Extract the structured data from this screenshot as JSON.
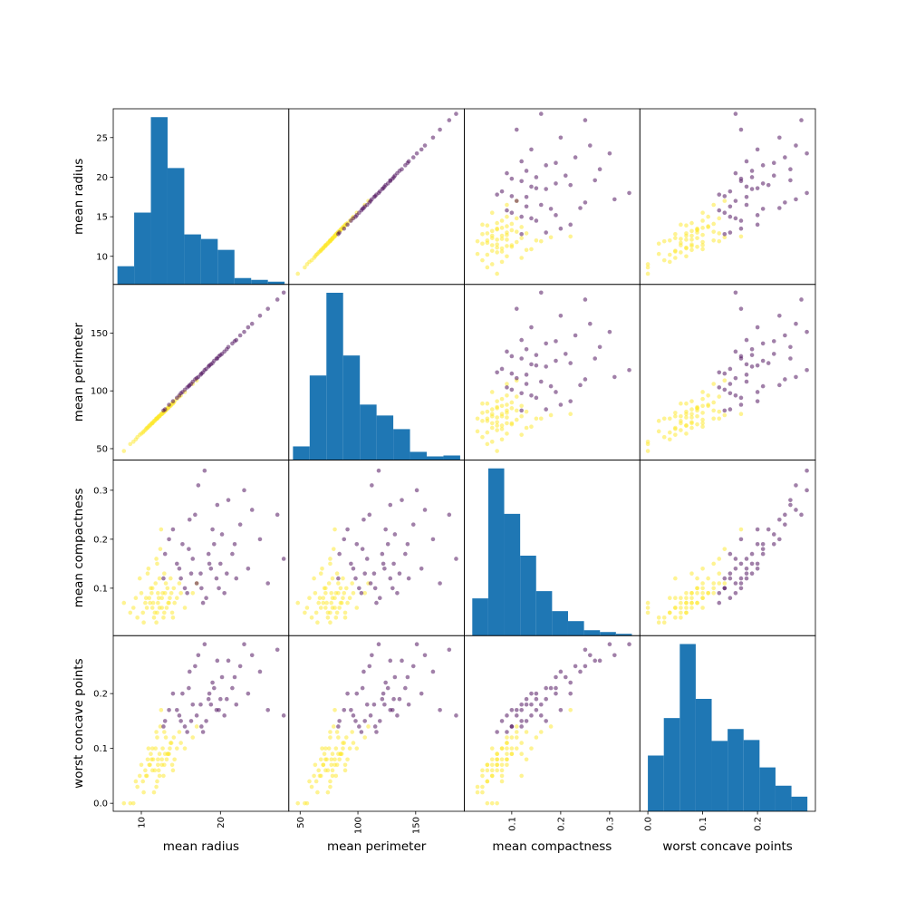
{
  "chart_data": {
    "type": "scatter_matrix",
    "title": "",
    "grid": false,
    "diagonal": "hist",
    "hist_color": "#1f77b4",
    "class_colors": {
      "0": "#440154",
      "1": "#fde725"
    },
    "point_alpha": 0.5,
    "variables": [
      {
        "label": "mean radius",
        "range": [
          6.45,
          28.64
        ],
        "bin_range": [
          6.98,
          28.11
        ],
        "x_ticks": [
          10,
          20
        ],
        "x_tick_labels": [
          "10",
          "20"
        ],
        "y_ticks": [
          10,
          15,
          20,
          25
        ],
        "y_tick_labels": [
          "10",
          "15",
          "20",
          "25"
        ],
        "hist_counts": [
          20,
          79,
          184,
          128,
          55,
          50,
          38,
          7,
          5,
          3
        ]
      },
      {
        "label": "mean perimeter",
        "range": [
          40.17,
          192.1
        ],
        "bin_range": [
          43.79,
          188.5
        ],
        "x_ticks": [
          50,
          100,
          150
        ],
        "x_tick_labels": [
          "50",
          "100",
          "150"
        ],
        "y_ticks": [
          50,
          100,
          150
        ],
        "y_tick_labels": [
          "50",
          "100",
          "150"
        ],
        "hist_counts": [
          15,
          93,
          184,
          115,
          61,
          49,
          34,
          9,
          4,
          5
        ]
      },
      {
        "label": "mean compactness",
        "range": [
          0.0031,
          0.3617
        ],
        "bin_range": [
          0.01938,
          0.3454
        ],
        "x_ticks": [
          0.1,
          0.2,
          0.3
        ],
        "x_tick_labels": [
          "0.1",
          "0.2",
          "0.3"
        ],
        "y_ticks": [
          0.1,
          0.2,
          0.3
        ],
        "y_tick_labels": [
          "0.1",
          "0.2",
          "0.3"
        ],
        "hist_counts": [
          41,
          184,
          134,
          88,
          49,
          27,
          16,
          6,
          4,
          2
        ]
      },
      {
        "label": "worst concave points",
        "range": [
          -0.0146,
          0.3056
        ],
        "bin_range": [
          0.0,
          0.291
        ],
        "x_ticks": [
          0.0,
          0.1,
          0.2
        ],
        "x_tick_labels": [
          "0.0",
          "0.1",
          "0.2"
        ],
        "y_ticks": [
          0.0,
          0.1,
          0.2
        ],
        "y_tick_labels": [
          "0.0",
          "0.1",
          "0.2"
        ],
        "hist_counts": [
          61,
          102,
          183,
          123,
          77,
          90,
          78,
          48,
          28,
          16
        ]
      }
    ],
    "points": {
      "columns": [
        "mean radius",
        "mean perimeter",
        "mean compactness",
        "worst concave points",
        "class"
      ],
      "rows": [
        [
          12.1,
          77,
          0.07,
          0.07,
          1
        ],
        [
          11.4,
          72,
          0.06,
          0.06,
          1
        ],
        [
          13.0,
          83,
          0.09,
          0.09,
          1
        ],
        [
          10.2,
          64,
          0.05,
          0.04,
          1
        ],
        [
          12.6,
          80,
          0.08,
          0.08,
          1
        ],
        [
          11.8,
          75,
          0.11,
          0.1,
          1
        ],
        [
          13.5,
          86,
          0.07,
          0.09,
          1
        ],
        [
          9.5,
          60,
          0.04,
          0.03,
          1
        ],
        [
          12.3,
          78,
          0.06,
          0.05,
          1
        ],
        [
          14.1,
          90,
          0.1,
          0.12,
          1
        ],
        [
          11.0,
          70,
          0.08,
          0.07,
          1
        ],
        [
          10.8,
          68,
          0.13,
          0.08,
          1
        ],
        [
          12.9,
          82,
          0.05,
          0.07,
          1
        ],
        [
          13.7,
          87,
          0.12,
          0.11,
          1
        ],
        [
          11.6,
          74,
          0.04,
          0.02,
          1
        ],
        [
          9.0,
          56,
          0.06,
          0.0,
          1
        ],
        [
          12.0,
          76,
          0.15,
          0.12,
          1
        ],
        [
          14.5,
          93,
          0.08,
          0.1,
          1
        ],
        [
          10.5,
          66,
          0.07,
          0.06,
          1
        ],
        [
          11.2,
          71,
          0.1,
          0.09,
          1
        ],
        [
          13.2,
          84,
          0.06,
          0.08,
          1
        ],
        [
          12.7,
          81,
          0.09,
          0.1,
          1
        ],
        [
          8.6,
          54,
          0.05,
          0.0,
          1
        ],
        [
          11.9,
          76,
          0.03,
          0.03,
          1
        ],
        [
          12.4,
          79,
          0.18,
          0.14,
          1
        ],
        [
          15.0,
          96,
          0.09,
          0.11,
          1
        ],
        [
          10.0,
          63,
          0.09,
          0.07,
          1
        ],
        [
          13.9,
          89,
          0.05,
          0.07,
          1
        ],
        [
          12.2,
          78,
          0.08,
          0.06,
          1
        ],
        [
          11.5,
          73,
          0.07,
          0.08,
          1
        ],
        [
          9.8,
          62,
          0.12,
          0.05,
          1
        ],
        [
          14.8,
          95,
          0.11,
          0.13,
          1
        ],
        [
          13.3,
          85,
          0.1,
          0.09,
          1
        ],
        [
          12.8,
          81,
          0.04,
          0.05,
          1
        ],
        [
          10.7,
          68,
          0.06,
          0.05,
          1
        ],
        [
          11.3,
          72,
          0.09,
          0.08,
          1
        ],
        [
          13.6,
          87,
          0.08,
          0.1,
          1
        ],
        [
          12.5,
          80,
          0.22,
          0.17,
          1
        ],
        [
          7.8,
          48,
          0.07,
          0.0,
          1
        ],
        [
          15.5,
          99,
          0.06,
          0.1,
          1
        ],
        [
          11.7,
          74,
          0.05,
          0.06,
          1
        ],
        [
          12.9,
          82,
          0.13,
          0.13,
          1
        ],
        [
          14.2,
          91,
          0.07,
          0.08,
          1
        ],
        [
          10.3,
          65,
          0.03,
          0.02,
          1
        ],
        [
          13.1,
          83,
          0.11,
          0.12,
          1
        ],
        [
          11.1,
          70,
          0.07,
          0.07,
          1
        ],
        [
          16.5,
          106,
          0.09,
          0.12,
          1
        ],
        [
          12.0,
          76,
          0.05,
          0.04,
          1
        ],
        [
          9.3,
          58,
          0.08,
          0.04,
          1
        ],
        [
          13.8,
          88,
          0.09,
          0.11,
          1
        ],
        [
          10.9,
          69,
          0.14,
          0.1,
          1
        ],
        [
          12.6,
          80,
          0.06,
          0.07,
          1
        ],
        [
          11.4,
          72,
          0.1,
          0.1,
          1
        ],
        [
          14.0,
          89,
          0.04,
          0.06,
          1
        ],
        [
          12.3,
          78,
          0.12,
          0.09,
          1
        ],
        [
          17.0,
          109,
          0.11,
          0.14,
          1
        ],
        [
          10.6,
          67,
          0.08,
          0.05,
          1
        ],
        [
          13.4,
          85,
          0.07,
          0.09,
          1
        ],
        [
          11.9,
          76,
          0.16,
          0.13,
          1
        ],
        [
          12.1,
          77,
          0.09,
          0.08,
          1
        ],
        [
          17.5,
          114,
          0.13,
          0.18,
          0
        ],
        [
          20.0,
          131,
          0.15,
          0.19,
          0
        ],
        [
          15.5,
          101,
          0.1,
          0.14,
          0
        ],
        [
          19.0,
          124,
          0.22,
          0.22,
          0
        ],
        [
          22.0,
          144,
          0.12,
          0.18,
          0
        ],
        [
          18.2,
          119,
          0.08,
          0.15,
          0
        ],
        [
          16.0,
          104,
          0.18,
          0.21,
          0
        ],
        [
          25.0,
          165,
          0.2,
          0.24,
          0
        ],
        [
          14.5,
          94,
          0.15,
          0.17,
          0
        ],
        [
          21.0,
          138,
          0.28,
          0.26,
          0
        ],
        [
          17.0,
          111,
          0.11,
          0.16,
          0
        ],
        [
          19.8,
          130,
          0.1,
          0.17,
          0
        ],
        [
          13.5,
          88,
          0.2,
          0.17,
          0
        ],
        [
          23.5,
          155,
          0.14,
          0.2,
          0
        ],
        [
          18.5,
          121,
          0.17,
          0.19,
          0
        ],
        [
          16.8,
          110,
          0.25,
          0.25,
          0
        ],
        [
          20.5,
          134,
          0.09,
          0.16,
          0
        ],
        [
          15.0,
          98,
          0.12,
          0.15,
          0
        ],
        [
          28.0,
          185,
          0.16,
          0.16,
          0
        ],
        [
          19.2,
          126,
          0.19,
          0.21,
          0
        ],
        [
          17.8,
          116,
          0.07,
          0.13,
          0
        ],
        [
          21.5,
          141,
          0.17,
          0.21,
          0
        ],
        [
          14.0,
          91,
          0.22,
          0.2,
          0
        ],
        [
          18.8,
          123,
          0.14,
          0.18,
          0
        ],
        [
          24.0,
          158,
          0.26,
          0.27,
          0
        ],
        [
          16.3,
          106,
          0.13,
          0.15,
          0
        ],
        [
          20.2,
          132,
          0.21,
          0.23,
          0
        ],
        [
          15.8,
          103,
          0.09,
          0.13,
          0
        ],
        [
          22.5,
          148,
          0.23,
          0.25,
          0
        ],
        [
          17.2,
          112,
          0.31,
          0.27,
          0
        ],
        [
          19.5,
          128,
          0.12,
          0.17,
          0
        ],
        [
          13.0,
          84,
          0.17,
          0.15,
          0
        ],
        [
          18.0,
          118,
          0.34,
          0.29,
          0
        ],
        [
          26.0,
          171,
          0.11,
          0.17,
          0
        ],
        [
          16.5,
          108,
          0.16,
          0.18,
          0
        ],
        [
          20.8,
          136,
          0.13,
          0.19,
          0
        ],
        [
          15.2,
          99,
          0.19,
          0.2,
          0
        ],
        [
          17.6,
          115,
          0.1,
          0.14,
          0
        ],
        [
          23.0,
          151,
          0.3,
          0.29,
          0
        ],
        [
          18.6,
          122,
          0.15,
          0.2,
          0
        ],
        [
          14.8,
          96,
          0.14,
          0.16,
          0
        ],
        [
          21.8,
          143,
          0.19,
          0.23,
          0
        ],
        [
          16.1,
          105,
          0.24,
          0.24,
          0
        ],
        [
          19.6,
          128,
          0.27,
          0.26,
          0
        ],
        [
          12.8,
          83,
          0.12,
          0.14,
          0
        ],
        [
          27.2,
          179,
          0.25,
          0.28,
          0
        ]
      ]
    }
  }
}
